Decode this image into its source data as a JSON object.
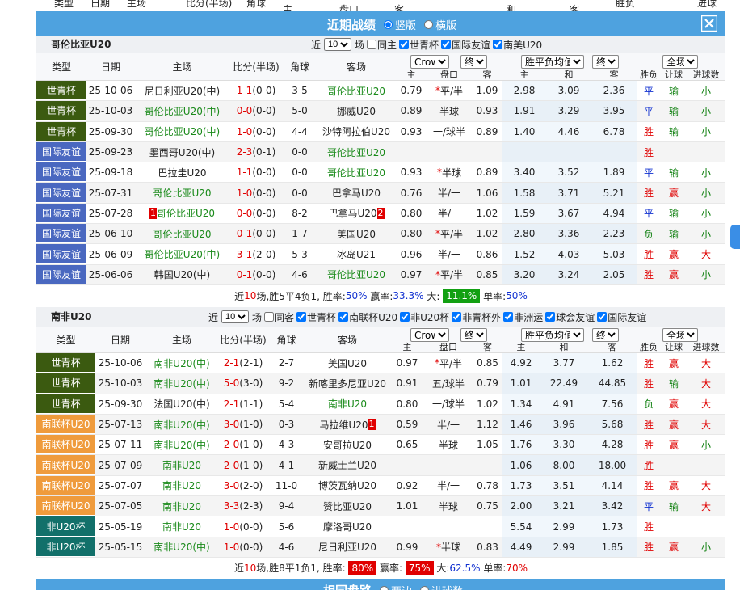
{
  "top_strip": [
    "类型",
    "日期",
    "主场",
    "比分(半场)",
    "角球",
    "胜负",
    "进球数",
    "主",
    "盘口",
    "客",
    "和",
    "客"
  ],
  "banner": {
    "title": "近期战绩",
    "options": [
      {
        "label": "竖版",
        "checked": true
      },
      {
        "label": "横版",
        "checked": false
      }
    ]
  },
  "type_colors": {
    "世青杯": "#3b5a10",
    "国际友谊": "#4a68c0",
    "南联杯U20": "#ef9b3c",
    "非U20杯": "#12706a"
  },
  "result_colors": {
    "胜": "#e00000",
    "平": "#1030d0",
    "负": "#108010",
    "赢": "#e00000",
    "输": "#108010",
    "大": "#e00000",
    "小": "#108010"
  },
  "team_color": "#1a8a1a",
  "sections": [
    {
      "team": "哥伦比亚U20",
      "recent": {
        "prefix": "近",
        "count": "10",
        "suffix": "场"
      },
      "filters": [
        {
          "label": "同主",
          "checked": false
        },
        {
          "label": "世青杯",
          "checked": true
        },
        {
          "label": "国际友谊",
          "checked": true
        },
        {
          "label": "南美U20",
          "checked": true
        }
      ],
      "header": {
        "cols": [
          "类型",
          "日期",
          "主场",
          "比分(半场)",
          "角球",
          "客场"
        ],
        "selects": [
          "Crow*",
          "终",
          "胜平负均值",
          "终",
          "全场"
        ],
        "sub": [
          "主",
          "盘口",
          "客",
          "主",
          "和",
          "客",
          "胜负",
          "让球",
          "进球数"
        ]
      },
      "rows": [
        {
          "type": "世青杯",
          "date": "25-10-06",
          "home": "尼日利亚U20(中)",
          "score": "1-1",
          "half": "(0-0)",
          "corner": "3-5",
          "away": "哥伦比亚U20",
          "ah": [
            "0.79",
            "平/半",
            "1.09"
          ],
          "hdp_star": "*",
          "eu": [
            "2.98",
            "3.09",
            "2.36"
          ],
          "res": [
            "平",
            "输",
            "小"
          ]
        },
        {
          "type": "世青杯",
          "date": "25-10-03",
          "home": "哥伦比亚U20(中)",
          "score": "0-0",
          "half": "(0-0)",
          "corner": "5-0",
          "away": "挪威U20",
          "ah": [
            "0.89",
            "半球",
            "0.93"
          ],
          "eu": [
            "1.91",
            "3.29",
            "3.95"
          ],
          "res": [
            "平",
            "输",
            "小"
          ]
        },
        {
          "type": "世青杯",
          "date": "25-09-30",
          "home": "哥伦比亚U20(中)",
          "score": "1-0",
          "half": "(0-0)",
          "corner": "4-4",
          "away": "沙特阿拉伯U20",
          "ah": [
            "0.93",
            "一/球半",
            "0.89"
          ],
          "eu": [
            "1.40",
            "4.46",
            "6.78"
          ],
          "res": [
            "胜",
            "输",
            "小"
          ]
        },
        {
          "type": "国际友谊",
          "date": "25-09-23",
          "home": "墨西哥U20(中)",
          "score": "2-3",
          "half": "(0-1)",
          "corner": "0-0",
          "away": "哥伦比亚U20",
          "ah": null,
          "eu": null,
          "res": [
            "胜",
            null,
            null
          ]
        },
        {
          "type": "国际友谊",
          "date": "25-09-18",
          "home": "巴拉圭U20",
          "score": "1-1",
          "half": "(0-0)",
          "corner": "0-0",
          "away": "哥伦比亚U20",
          "ah": [
            "0.93",
            "半球",
            "0.89"
          ],
          "hdp_star": "*",
          "eu": [
            "3.40",
            "3.52",
            "1.89"
          ],
          "res": [
            "平",
            "输",
            "小"
          ]
        },
        {
          "type": "国际友谊",
          "date": "25-07-31",
          "home": "哥伦比亚U20",
          "score": "1-0",
          "half": "(0-0)",
          "corner": "0-0",
          "away": "巴拿马U20",
          "ah": [
            "0.76",
            "半/一",
            "1.06"
          ],
          "eu": [
            "1.58",
            "3.71",
            "5.21"
          ],
          "res": [
            "胜",
            "赢",
            "小"
          ]
        },
        {
          "type": "国际友谊",
          "date": "25-07-28",
          "home": "哥伦比亚U20",
          "home_badge": "1",
          "score": "0-0",
          "half": "(0-0)",
          "corner": "8-2",
          "away": "巴拿马U20",
          "away_badge": "2",
          "ah": [
            "0.80",
            "半/一",
            "1.02"
          ],
          "eu": [
            "1.59",
            "3.67",
            "4.94"
          ],
          "res": [
            "平",
            "输",
            "小"
          ]
        },
        {
          "type": "国际友谊",
          "date": "25-06-10",
          "home": "哥伦比亚U20",
          "score": "0-1",
          "half": "(0-0)",
          "corner": "1-7",
          "away": "美国U20",
          "ah": [
            "0.80",
            "平/半",
            "1.02"
          ],
          "hdp_star": "*",
          "eu": [
            "2.80",
            "3.36",
            "2.23"
          ],
          "res": [
            "负",
            "输",
            "小"
          ]
        },
        {
          "type": "国际友谊",
          "date": "25-06-09",
          "home": "哥伦比亚U20(中)",
          "score": "3-1",
          "half": "(2-0)",
          "corner": "5-3",
          "away": "冰岛U21",
          "ah": [
            "0.96",
            "半/一",
            "0.86"
          ],
          "eu": [
            "1.52",
            "4.03",
            "5.03"
          ],
          "res": [
            "胜",
            "赢",
            "大"
          ]
        },
        {
          "type": "国际友谊",
          "date": "25-06-06",
          "home": "韩国U20(中)",
          "score": "0-1",
          "half": "(0-0)",
          "corner": "4-6",
          "away": "哥伦比亚U20",
          "ah": [
            "0.97",
            "平/半",
            "0.85"
          ],
          "hdp_star": "*",
          "eu": [
            "3.20",
            "3.24",
            "2.05"
          ],
          "res": [
            "胜",
            "赢",
            "小"
          ]
        }
      ],
      "summary": [
        {
          "text": "近"
        },
        {
          "text": "10",
          "style": "red"
        },
        {
          "text": "场,胜5平4负1, 胜率:"
        },
        {
          "text": "50%",
          "style": "blue"
        },
        {
          "text": " 赢率:"
        },
        {
          "text": "33.3%",
          "style": "blue"
        },
        {
          "text": " 大: "
        },
        {
          "text": "11.1%",
          "style": "green_box"
        },
        {
          "text": " 单率:"
        },
        {
          "text": "50%",
          "style": "blue"
        }
      ]
    },
    {
      "team": "南非U20",
      "recent": {
        "prefix": "近",
        "count": "10",
        "suffix": "场"
      },
      "filters": [
        {
          "label": "同客",
          "checked": false
        },
        {
          "label": "世青杯",
          "checked": true
        },
        {
          "label": "南联杯U20",
          "checked": true
        },
        {
          "label": "非U20杯",
          "checked": true
        },
        {
          "label": "非青杯外",
          "checked": true
        },
        {
          "label": "非洲运",
          "checked": true
        },
        {
          "label": "球会友谊",
          "checked": true
        },
        {
          "label": "国际友谊",
          "checked": true
        }
      ],
      "header": {
        "cols": [
          "类型",
          "日期",
          "主场",
          "比分(半场)",
          "角球",
          "客场"
        ],
        "selects": [
          "Crow*",
          "终",
          "胜平负均值",
          "终",
          "全场"
        ],
        "sub": [
          "主",
          "盘口",
          "客",
          "主",
          "和",
          "客",
          "胜负",
          "让球",
          "进球数"
        ]
      },
      "rows": [
        {
          "type": "世青杯",
          "date": "25-10-06",
          "home": "南非U20(中)",
          "score": "2-1",
          "half": "(2-1)",
          "corner": "2-7",
          "away": "美国U20",
          "ah": [
            "0.97",
            "平/半",
            "0.85"
          ],
          "hdp_star": "*",
          "eu": [
            "4.92",
            "3.77",
            "1.62"
          ],
          "res": [
            "胜",
            "赢",
            "大"
          ]
        },
        {
          "type": "世青杯",
          "date": "25-10-03",
          "home": "南非U20(中)",
          "score": "5-0",
          "half": "(3-0)",
          "corner": "9-2",
          "away": "新喀里多尼亚U20",
          "ah": [
            "0.91",
            "五/球半",
            "0.79"
          ],
          "eu": [
            "1.01",
            "22.49",
            "44.85"
          ],
          "res": [
            "胜",
            "输",
            "大"
          ]
        },
        {
          "type": "世青杯",
          "date": "25-09-30",
          "home": "法国U20(中)",
          "score": "2-1",
          "half": "(1-1)",
          "corner": "5-4",
          "away": "南非U20",
          "ah": [
            "0.80",
            "一/球半",
            "1.02"
          ],
          "eu": [
            "1.34",
            "4.91",
            "7.56"
          ],
          "res": [
            "负",
            "赢",
            "大"
          ]
        },
        {
          "type": "南联杯U20",
          "date": "25-07-13",
          "home": "南非U20(中)",
          "score": "3-0",
          "half": "(1-0)",
          "corner": "0-3",
          "away": "马拉维U20",
          "away_badge": "1",
          "ah": [
            "0.59",
            "半/一",
            "1.12"
          ],
          "eu": [
            "1.46",
            "3.96",
            "5.68"
          ],
          "res": [
            "胜",
            "赢",
            "大"
          ]
        },
        {
          "type": "南联杯U20",
          "date": "25-07-11",
          "home": "南非U20(中)",
          "score": "2-0",
          "half": "(1-0)",
          "corner": "4-3",
          "away": "安哥拉U20",
          "ah": [
            "0.65",
            "半球",
            "1.05"
          ],
          "eu": [
            "1.76",
            "3.30",
            "4.28"
          ],
          "res": [
            "胜",
            "赢",
            "小"
          ]
        },
        {
          "type": "南联杯U20",
          "date": "25-07-09",
          "home": "南非U20",
          "score": "2-0",
          "half": "(1-0)",
          "corner": "4-1",
          "away": "新威士兰U20",
          "ah": null,
          "eu": [
            "1.06",
            "8.00",
            "18.00"
          ],
          "res": [
            "胜",
            null,
            null
          ]
        },
        {
          "type": "南联杯U20",
          "date": "25-07-07",
          "home": "南非U20",
          "score": "3-0",
          "half": "(2-0)",
          "corner": "11-0",
          "away": "博茨瓦纳U20",
          "ah": [
            "0.92",
            "半/一",
            "0.78"
          ],
          "eu": [
            "1.73",
            "3.51",
            "4.14"
          ],
          "res": [
            "胜",
            "赢",
            "大"
          ]
        },
        {
          "type": "南联杯U20",
          "date": "25-07-05",
          "home": "南非U20",
          "score": "3-3",
          "half": "(2-3)",
          "corner": "9-4",
          "away": "赞比亚U20",
          "ah": [
            "1.01",
            "半球",
            "0.75"
          ],
          "eu": [
            "2.00",
            "3.21",
            "3.42"
          ],
          "res": [
            "平",
            "输",
            "大"
          ]
        },
        {
          "type": "非U20杯",
          "date": "25-05-19",
          "home": "南非U20",
          "score": "1-0",
          "half": "(0-0)",
          "corner": "5-6",
          "away": "摩洛哥U20",
          "ah": null,
          "eu": [
            "5.54",
            "2.99",
            "1.73"
          ],
          "res": [
            "胜",
            null,
            null
          ]
        },
        {
          "type": "非U20杯",
          "date": "25-05-15",
          "home": "南非U20(中)",
          "score": "1-0",
          "half": "(0-0)",
          "corner": "4-6",
          "away": "尼日利亚U20",
          "ah": [
            "0.99",
            "半球",
            "0.83"
          ],
          "hdp_star": "*",
          "eu": [
            "4.49",
            "2.99",
            "1.85"
          ],
          "res": [
            "胜",
            "赢",
            "小"
          ]
        }
      ],
      "summary": [
        {
          "text": "近"
        },
        {
          "text": "10",
          "style": "red"
        },
        {
          "text": "场,胜8平1负1, 胜率: "
        },
        {
          "text": "80%",
          "style": "red_box"
        },
        {
          "text": " 赢率: "
        },
        {
          "text": "75%",
          "style": "red_box"
        },
        {
          "text": " 大:"
        },
        {
          "text": "62.5%",
          "style": "blue"
        },
        {
          "text": " 单率:"
        },
        {
          "text": "70%",
          "style": "red"
        }
      ]
    }
  ],
  "bottom_banner": {
    "title": "相同盘路",
    "options": [
      {
        "label": "两边",
        "checked": false
      },
      {
        "label": "进球数",
        "checked": false
      }
    ]
  }
}
